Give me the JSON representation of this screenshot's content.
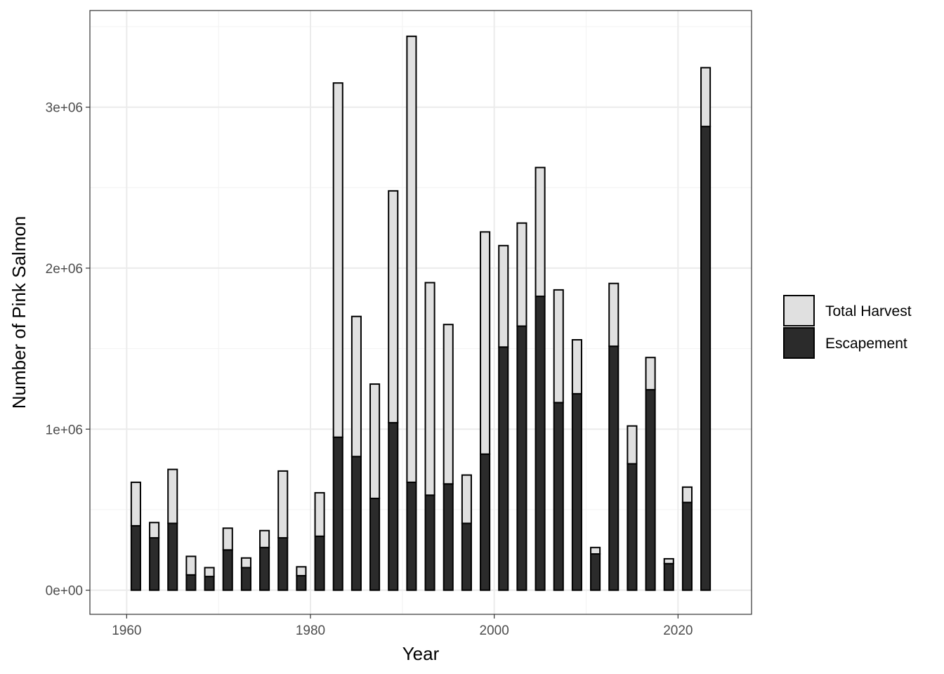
{
  "chart_data": {
    "type": "bar",
    "stacked": true,
    "xlabel": "Year",
    "ylabel": "Number of Pink Salmon",
    "xlim": [
      1956,
      2028
    ],
    "ylim": [
      -150000,
      3600000
    ],
    "x_ticks": [
      1960,
      1980,
      2000,
      2020
    ],
    "x_tick_labels": [
      "1960",
      "1980",
      "2000",
      "2020"
    ],
    "y_ticks": [
      0,
      1000000,
      2000000,
      3000000
    ],
    "y_tick_labels": [
      "0e+00",
      "1e+06",
      "2e+06",
      "3e+06"
    ],
    "grid": true,
    "legend_position": "right",
    "x": [
      1961,
      1963,
      1965,
      1967,
      1969,
      1971,
      1973,
      1975,
      1977,
      1979,
      1981,
      1983,
      1985,
      1987,
      1989,
      1991,
      1993,
      1995,
      1997,
      1999,
      2001,
      2003,
      2005,
      2007,
      2009,
      2011,
      2013,
      2015,
      2017,
      2019,
      2021,
      2023
    ],
    "series": [
      {
        "name": "Total Harvest",
        "color": "#e0e0e0",
        "values": [
          270000,
          95000,
          335000,
          115000,
          55000,
          135000,
          60000,
          105000,
          415000,
          55000,
          270000,
          2200000,
          870000,
          710000,
          1440000,
          2770000,
          1320000,
          990000,
          300000,
          1380000,
          630000,
          640000,
          800000,
          700000,
          335000,
          40000,
          390000,
          235000,
          200000,
          30000,
          95000,
          365000
        ]
      },
      {
        "name": "Escapement",
        "color": "#2b2b2b",
        "values": [
          400000,
          325000,
          415000,
          95000,
          85000,
          250000,
          140000,
          265000,
          325000,
          90000,
          335000,
          950000,
          830000,
          570000,
          1040000,
          670000,
          590000,
          660000,
          415000,
          845000,
          1510000,
          1640000,
          1825000,
          1165000,
          1220000,
          225000,
          1515000,
          785000,
          1245000,
          165000,
          545000,
          2880000
        ]
      }
    ]
  }
}
